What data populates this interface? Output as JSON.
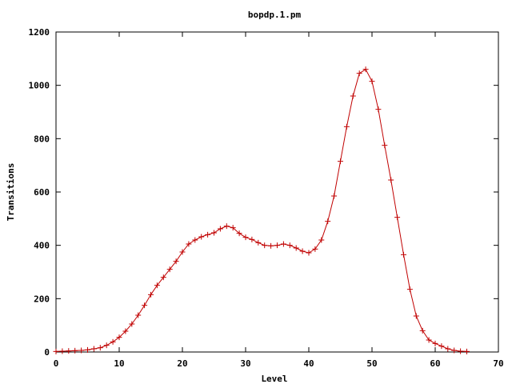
{
  "chart_data": {
    "type": "line",
    "title": "bopdp.1.pm",
    "xlabel": "Level",
    "ylabel": "Transitions",
    "xlim": [
      0,
      70
    ],
    "ylim": [
      0,
      1200
    ],
    "xticks": [
      0,
      10,
      20,
      30,
      40,
      50,
      60,
      70
    ],
    "yticks": [
      0,
      200,
      400,
      600,
      800,
      1000,
      1200
    ],
    "grid": false,
    "legend": "none",
    "marker": "plus",
    "line_color": "#c00000",
    "series": [
      {
        "x": [
          0,
          1,
          2,
          3,
          4,
          5,
          6,
          7,
          8,
          9,
          10,
          11,
          12,
          13,
          14,
          15,
          16,
          17,
          18,
          19,
          20,
          21,
          22,
          23,
          24,
          25,
          26,
          27,
          28,
          29,
          30,
          31,
          32,
          33,
          34,
          35,
          36,
          37,
          38,
          39,
          40,
          41,
          42,
          43,
          44,
          45,
          46,
          47,
          48,
          49,
          50,
          51,
          52,
          53,
          54,
          55,
          56,
          57,
          58,
          59,
          60,
          61,
          62,
          63,
          64,
          65
        ],
        "y": [
          2,
          3,
          4,
          5,
          6,
          8,
          12,
          16,
          25,
          38,
          55,
          78,
          105,
          138,
          175,
          215,
          250,
          280,
          310,
          340,
          375,
          405,
          420,
          432,
          440,
          447,
          462,
          472,
          466,
          445,
          430,
          422,
          410,
          400,
          398,
          400,
          405,
          400,
          390,
          378,
          372,
          386,
          420,
          490,
          585,
          715,
          845,
          960,
          1045,
          1060,
          1015,
          910,
          775,
          645,
          505,
          365,
          235,
          135,
          80,
          45,
          32,
          22,
          12,
          6,
          3,
          2
        ]
      }
    ]
  }
}
